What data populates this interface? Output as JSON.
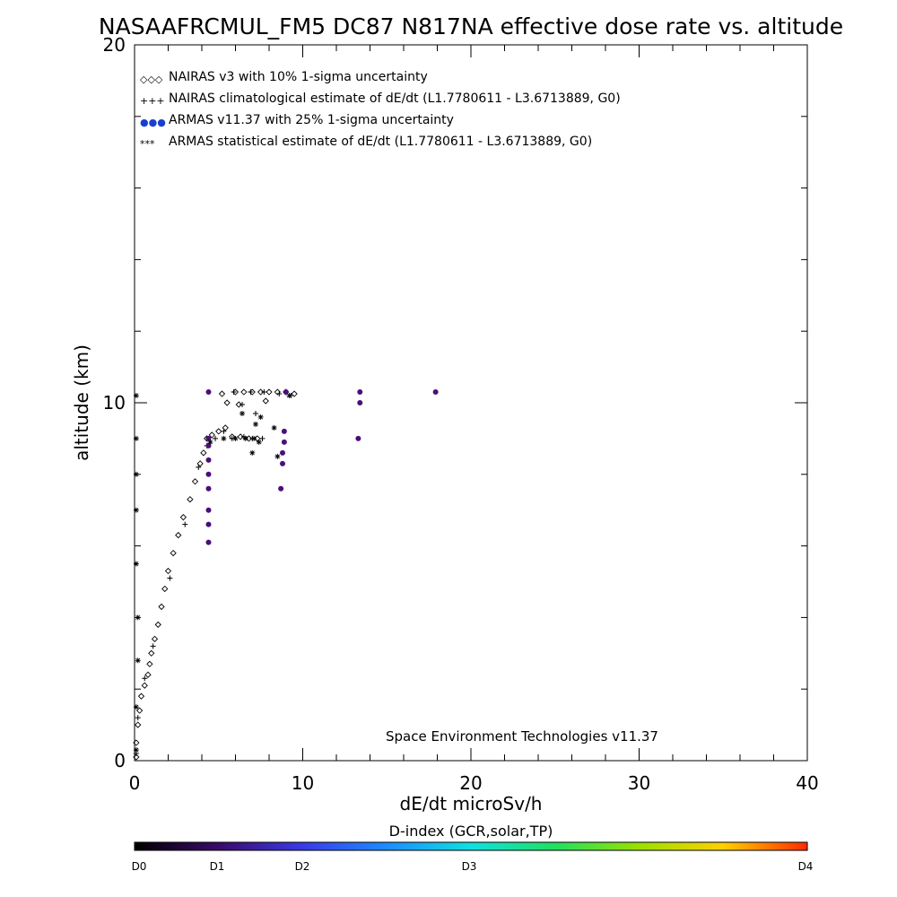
{
  "chart_data": {
    "type": "scatter",
    "title": "NASAAFRCMUL_FM5 DC87 N817NA effective dose rate vs. altitude",
    "xlabel": "dE/dt microSv/h",
    "ylabel": "altitude (km)",
    "xlim": [
      0,
      40
    ],
    "ylim": [
      0,
      20
    ],
    "xticks": [
      0,
      10,
      20,
      30,
      40
    ],
    "yticks": [
      0,
      10,
      20
    ],
    "grid": false,
    "legend_position": "top-left",
    "credit": "Space Environment Technologies v11.37",
    "legend": [
      {
        "symbol": "◇◇◇",
        "label": "NAIRAS v3 with 10% 1-sigma uncertainty"
      },
      {
        "symbol": "+++",
        "label": "NAIRAS climatological estimate of dE/dt (L1.7780611 - L3.6713889, G0)"
      },
      {
        "symbol": "●●●",
        "label": "ARMAS v11.37 with 25% 1-sigma uncertainty",
        "color": "#1a3fd0"
      },
      {
        "symbol": "***",
        "label": "ARMAS statistical estimate of dE/dt (L1.7780611 - L3.6713889, G0)"
      }
    ],
    "series": [
      {
        "name": "NAIRAS v3 with 10% 1-sigma uncertainty",
        "marker": "diamond",
        "color": "#000000",
        "points": [
          [
            0.1,
            0.1
          ],
          [
            0.1,
            0.5
          ],
          [
            0.2,
            1.0
          ],
          [
            0.3,
            1.4
          ],
          [
            0.4,
            1.8
          ],
          [
            0.6,
            2.1
          ],
          [
            0.8,
            2.4
          ],
          [
            0.9,
            2.7
          ],
          [
            1.0,
            3.0
          ],
          [
            1.2,
            3.4
          ],
          [
            1.4,
            3.8
          ],
          [
            1.6,
            4.3
          ],
          [
            1.8,
            4.8
          ],
          [
            2.0,
            5.3
          ],
          [
            2.3,
            5.8
          ],
          [
            2.6,
            6.3
          ],
          [
            2.9,
            6.8
          ],
          [
            3.3,
            7.3
          ],
          [
            3.6,
            7.8
          ],
          [
            3.9,
            8.3
          ],
          [
            4.1,
            8.6
          ],
          [
            4.3,
            9.0
          ],
          [
            4.6,
            9.1
          ],
          [
            5.0,
            9.2
          ],
          [
            5.4,
            9.3
          ],
          [
            5.8,
            9.05
          ],
          [
            6.3,
            9.05
          ],
          [
            6.8,
            9.0
          ],
          [
            7.3,
            9.0
          ],
          [
            5.2,
            10.25
          ],
          [
            6.0,
            10.3
          ],
          [
            6.5,
            10.3
          ],
          [
            7.0,
            10.3
          ],
          [
            7.5,
            10.3
          ],
          [
            8.0,
            10.3
          ],
          [
            8.5,
            10.3
          ],
          [
            9.0,
            10.3
          ],
          [
            9.5,
            10.25
          ],
          [
            5.5,
            10.0
          ],
          [
            6.2,
            9.95
          ],
          [
            7.8,
            10.05
          ]
        ]
      },
      {
        "name": "NAIRAS climatological estimate of dE/dt (L1.7780611 - L3.6713889, G0)",
        "marker": "plus",
        "color": "#000000",
        "points": [
          [
            0.1,
            0.2
          ],
          [
            0.2,
            1.2
          ],
          [
            0.6,
            2.3
          ],
          [
            1.1,
            3.2
          ],
          [
            2.1,
            5.1
          ],
          [
            3.0,
            6.6
          ],
          [
            3.8,
            8.2
          ],
          [
            4.3,
            8.8
          ],
          [
            4.8,
            9.0
          ],
          [
            5.3,
            9.2
          ],
          [
            5.8,
            9.0
          ],
          [
            6.5,
            9.05
          ],
          [
            7.0,
            9.0
          ],
          [
            7.6,
            9.0
          ],
          [
            6.4,
            9.95
          ],
          [
            7.2,
            9.7
          ],
          [
            5.9,
            10.3
          ],
          [
            6.9,
            10.3
          ],
          [
            7.7,
            10.3
          ],
          [
            8.6,
            10.25
          ],
          [
            9.3,
            10.2
          ]
        ]
      },
      {
        "name": "ARMAS v11.37 with 25% 1-sigma uncertainty",
        "marker": "dot",
        "color": "#4a0f7a",
        "points": [
          [
            4.4,
            6.1
          ],
          [
            4.4,
            6.6
          ],
          [
            4.4,
            7.0
          ],
          [
            4.4,
            7.6
          ],
          [
            4.4,
            8.0
          ],
          [
            4.4,
            8.4
          ],
          [
            4.4,
            8.8
          ],
          [
            4.4,
            9.0
          ],
          [
            4.4,
            10.3
          ],
          [
            8.7,
            7.6
          ],
          [
            8.8,
            8.3
          ],
          [
            8.8,
            8.6
          ],
          [
            8.9,
            8.9
          ],
          [
            8.9,
            9.2
          ],
          [
            9.0,
            10.3
          ],
          [
            13.3,
            9.0
          ],
          [
            13.4,
            10.0
          ],
          [
            13.4,
            10.3
          ],
          [
            17.9,
            10.3
          ]
        ]
      },
      {
        "name": "ARMAS statistical estimate of dE/dt (L1.7780611 - L3.6713889, G0)",
        "marker": "star",
        "color": "#000000",
        "points": [
          [
            0.1,
            0.3
          ],
          [
            0.1,
            1.5
          ],
          [
            0.2,
            2.8
          ],
          [
            0.2,
            4.0
          ],
          [
            0.1,
            5.5
          ],
          [
            0.1,
            7.0
          ],
          [
            0.1,
            8.0
          ],
          [
            0.1,
            9.0
          ],
          [
            0.1,
            10.2
          ],
          [
            4.5,
            8.9
          ],
          [
            5.3,
            9.0
          ],
          [
            6.0,
            9.0
          ],
          [
            6.6,
            9.0
          ],
          [
            7.1,
            9.0
          ],
          [
            7.4,
            8.9
          ],
          [
            7.2,
            9.4
          ],
          [
            7.5,
            9.6
          ],
          [
            7.0,
            8.6
          ],
          [
            8.3,
            9.3
          ],
          [
            8.5,
            8.5
          ],
          [
            9.2,
            10.2
          ],
          [
            6.4,
            9.7
          ]
        ]
      }
    ],
    "colorbar": {
      "label": "D-index (GCR,solar,TP)",
      "ticks": [
        {
          "label": "D0",
          "value": 0
        },
        {
          "label": "D1",
          "value": 1
        },
        {
          "label": "D2",
          "value": 2
        },
        {
          "label": "D3",
          "value": 3
        },
        {
          "label": "D4",
          "value": 4
        }
      ]
    }
  }
}
